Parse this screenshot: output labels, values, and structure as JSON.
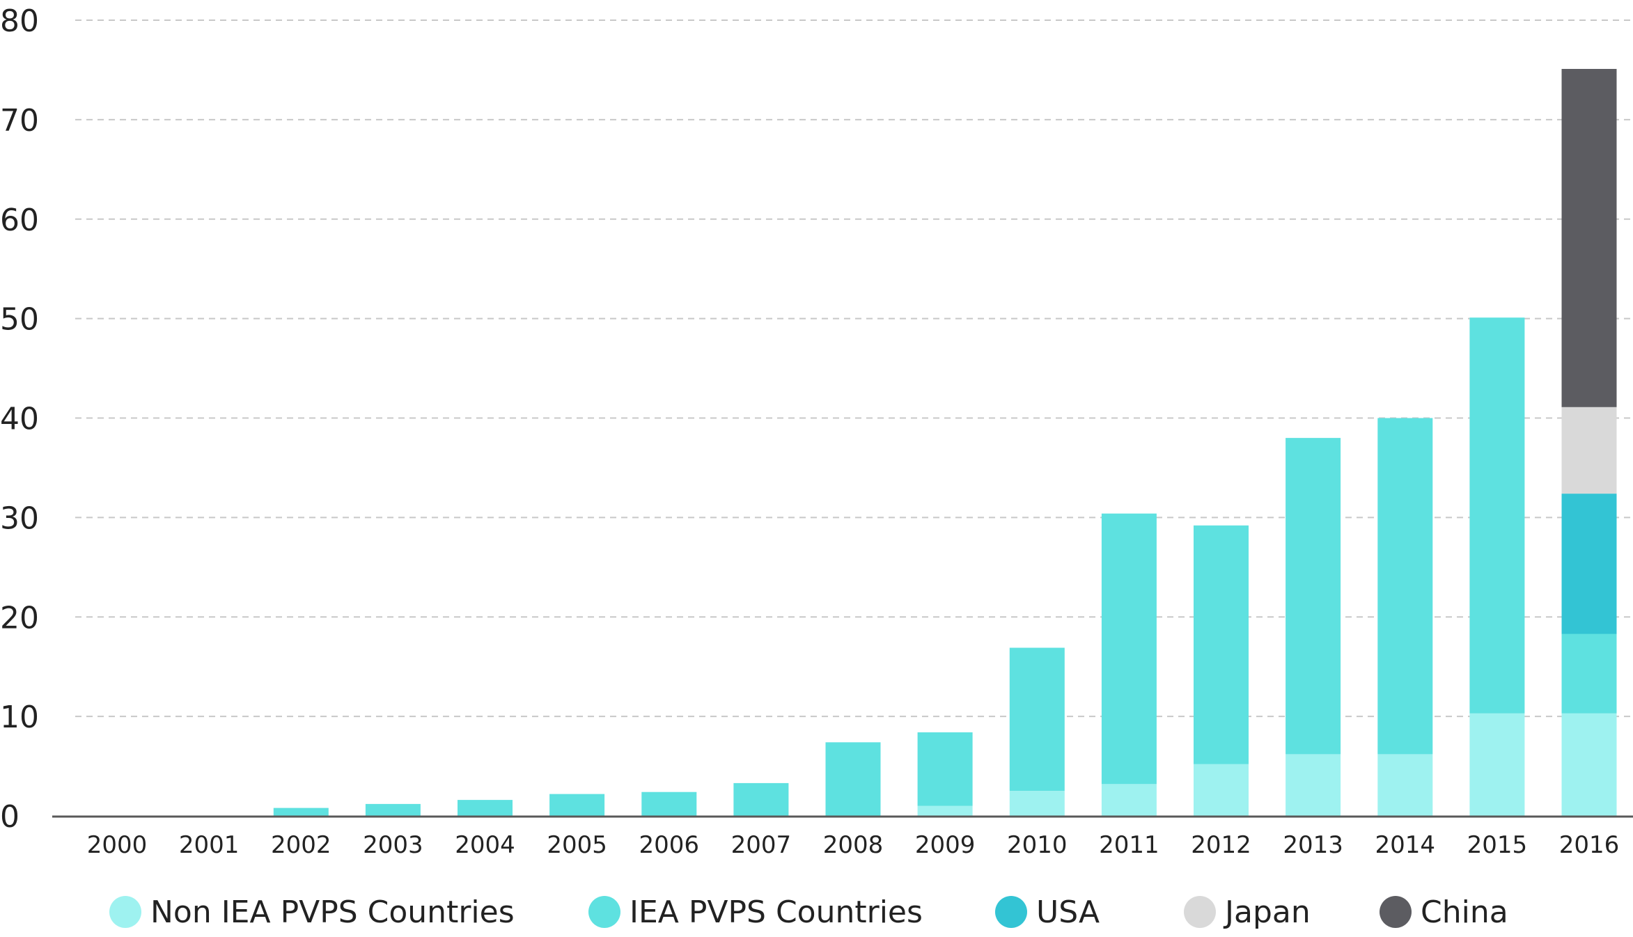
{
  "chart_data": {
    "type": "bar",
    "stacked": true,
    "title": "",
    "xlabel": "",
    "ylabel": "",
    "ylim": [
      0,
      80
    ],
    "yticks": [
      "0",
      "10",
      "20",
      "30",
      "40",
      "50",
      "60",
      "70",
      "80"
    ],
    "grid": "horizontal-dashed",
    "legend_position": "bottom",
    "categories": [
      "2000",
      "2001",
      "2002",
      "2003",
      "2004",
      "2005",
      "2006",
      "2007",
      "2008",
      "2009",
      "2010",
      "2011",
      "2012",
      "2013",
      "2014",
      "2015",
      "2016"
    ],
    "series": [
      {
        "name": "Non IEA PVPS Countries",
        "color": "#9EF2F0",
        "values": [
          0,
          0,
          0,
          0,
          0,
          0,
          0,
          0,
          0,
          1.0,
          2.5,
          3.2,
          5.2,
          6.2,
          6.2,
          10.3,
          10.3
        ]
      },
      {
        "name": "IEA PVPS Countries",
        "color": "#5EE1E0",
        "values": [
          0,
          0,
          0.8,
          1.2,
          1.6,
          2.2,
          2.4,
          3.3,
          7.4,
          7.4,
          14.4,
          27.2,
          24.0,
          31.8,
          33.8,
          39.8,
          8.0
        ]
      },
      {
        "name": "USA",
        "color": "#33C4D4",
        "values": [
          0,
          0,
          0,
          0,
          0,
          0,
          0,
          0,
          0,
          0,
          0,
          0,
          0,
          0,
          0,
          0,
          14.1
        ]
      },
      {
        "name": "Japan",
        "color": "#D9D9D9",
        "values": [
          0,
          0,
          0,
          0,
          0,
          0,
          0,
          0,
          0,
          0,
          0,
          0,
          0,
          0,
          0,
          0,
          8.7
        ]
      },
      {
        "name": "China",
        "color": "#5C5C61",
        "values": [
          0,
          0,
          0,
          0,
          0,
          0,
          0,
          0,
          0,
          0,
          0,
          0,
          0,
          0,
          0,
          0,
          34.0
        ]
      }
    ]
  }
}
